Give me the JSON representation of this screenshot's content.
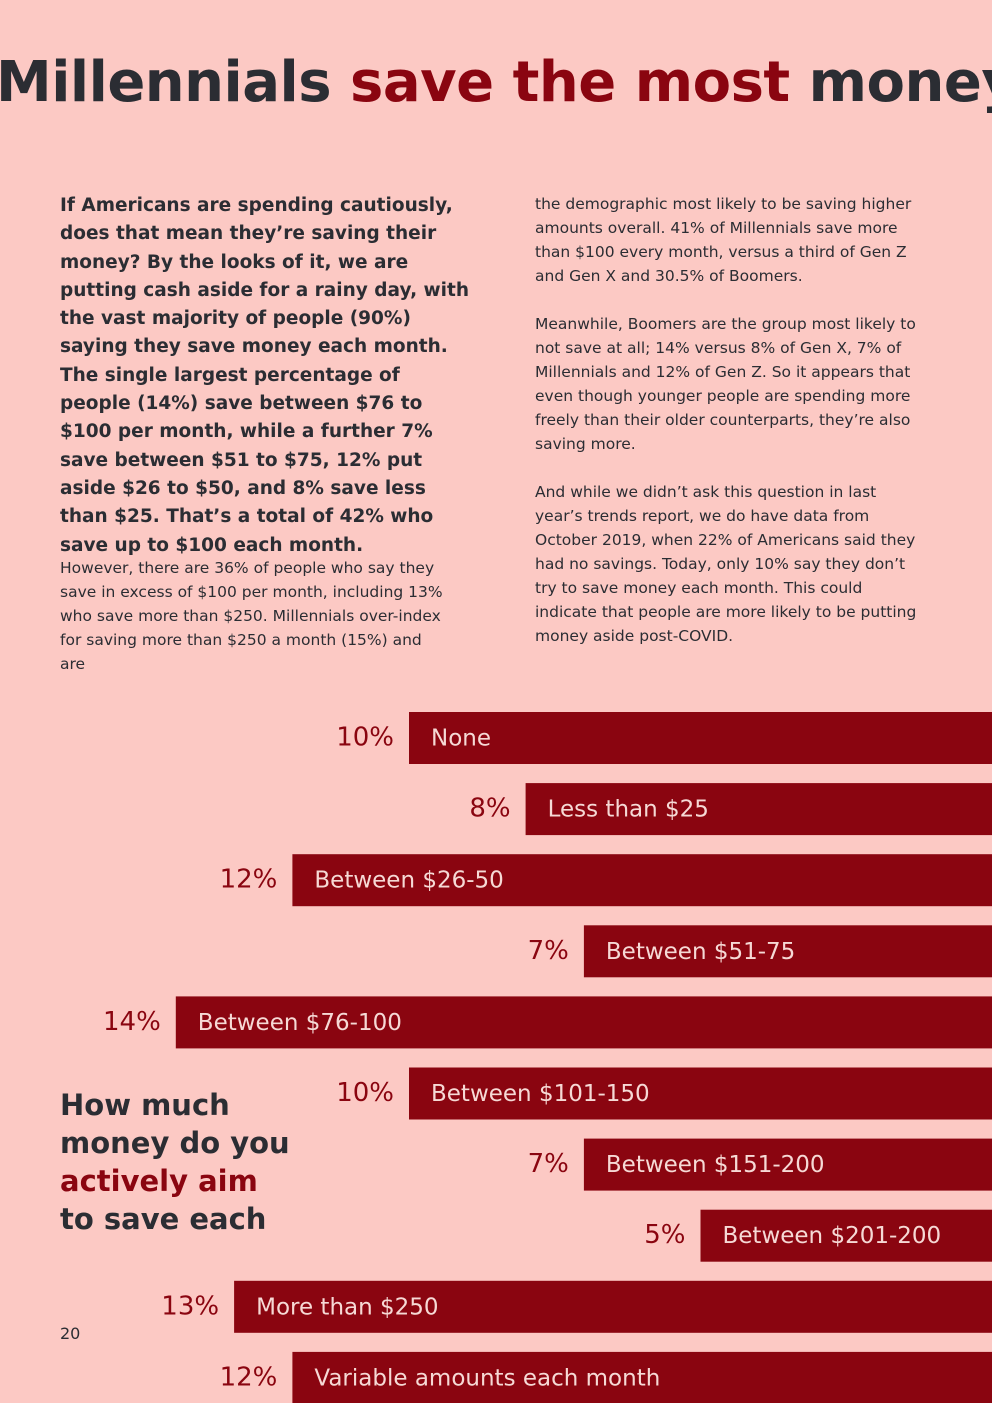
{
  "header": {
    "title_parts": [
      "Millennials ",
      "save the most",
      " money"
    ]
  },
  "body": {
    "lead": "If Americans are spending cautiously, does that mean they’re saving their money? By the looks of it, we are putting cash aside for a rainy day, with the vast majority of people (90%) saying they save money each month. The single largest percentage of people (14%) save between $76 to $100 per month, while a further 7% save between $51 to $75, 12% put aside $26 to $50, and 8% save less than $25. That’s a total of 42% who save up to $100 each month.",
    "left_paragraph": "However, there are 36% of people who say they save in excess of $100 per month, including 13% who save more than $250. Millennials over-index for saving more than $250 a month (15%) and are",
    "right_paragraphs": [
      "the demographic most likely to be saving higher amounts overall. 41% of Millennials save more than $100 every month, versus a third of Gen Z and Gen X and 30.5% of Boomers.",
      "Meanwhile, Boomers are the group most likely to not save at all; 14% versus 8% of Gen X, 7% of Millennials and 12% of Gen Z. So it appears that even though younger people are spending more freely than their older counterparts, they’re also saving more.",
      "And while we didn’t ask this question in last year’s trends report, we do have data from October 2019, when 22% of Americans said they had no savings. Today, only 10% say they don’t try to save money each month. This could indicate that people are more likely to be putting money aside post-COVID."
    ]
  },
  "question_parts": [
    "How much money do you ",
    "actively aim",
    " to save each"
  ],
  "chart_data": {
    "type": "bar",
    "orientation": "horizontal",
    "color": "#8a0510",
    "categories": [
      "None",
      "Less than $25",
      "Between $26-50",
      "Between $51-75",
      "Between $76-100",
      "Between $101-150",
      "Between $151-200",
      "Between $201-200",
      "More than $250",
      "Variable amounts each month"
    ],
    "values": [
      10,
      8,
      12,
      7,
      14,
      10,
      7,
      5,
      13,
      12
    ],
    "value_labels": [
      "10%",
      "8%",
      "12%",
      "7%",
      "14%",
      "10%",
      "7%",
      "5%",
      "13%",
      "12%"
    ]
  },
  "footer": {
    "page_number": "20"
  }
}
